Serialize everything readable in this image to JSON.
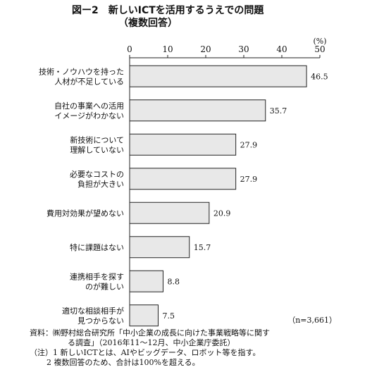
{
  "title": "図ー2　新しいICTを活用するうえでの問題",
  "subtitle": "（複数回答）",
  "chart_data": {
    "type": "bar",
    "orientation": "horizontal",
    "unit_label": "(%)",
    "xlim": [
      0,
      50
    ],
    "xticks": [
      0,
      10,
      20,
      30,
      40,
      50
    ],
    "categories": [
      [
        "技術・ノウハウを持った",
        "人材が不足している"
      ],
      [
        "自社の事業への活用",
        "イメージがわかない"
      ],
      [
        "新技術について",
        "理解していない"
      ],
      [
        "必要なコストの",
        "負担が大きい"
      ],
      [
        "費用対効果が望めない"
      ],
      [
        "特に課題はない"
      ],
      [
        "連携相手を探す",
        "のが難しい"
      ],
      [
        "適切な相談相手が",
        "見つからない"
      ]
    ],
    "values": [
      46.5,
      35.7,
      27.9,
      27.9,
      20.9,
      15.7,
      8.8,
      7.5
    ],
    "value_labels": [
      "46.5",
      "35.7",
      "27.9",
      "27.9",
      "20.9",
      "15.7",
      "8.8",
      "7.5"
    ],
    "bar_color": "#e8e8e8",
    "bar_edge_color": "#222222",
    "n_label": "（n=3,661）"
  },
  "source_line1": "資料：㈱野村総合研究所「中小企業の成長に向けた事業戦略等に関す",
  "source_line2": "る調査」（2016年11～12月、中小企業庁委託）",
  "note_line1": "（注）1 新しいICTとは、AIやビッグデータ、ロボット等を指す。",
  "note_line2": "2 複数回答のため、合計は100%を超える。"
}
